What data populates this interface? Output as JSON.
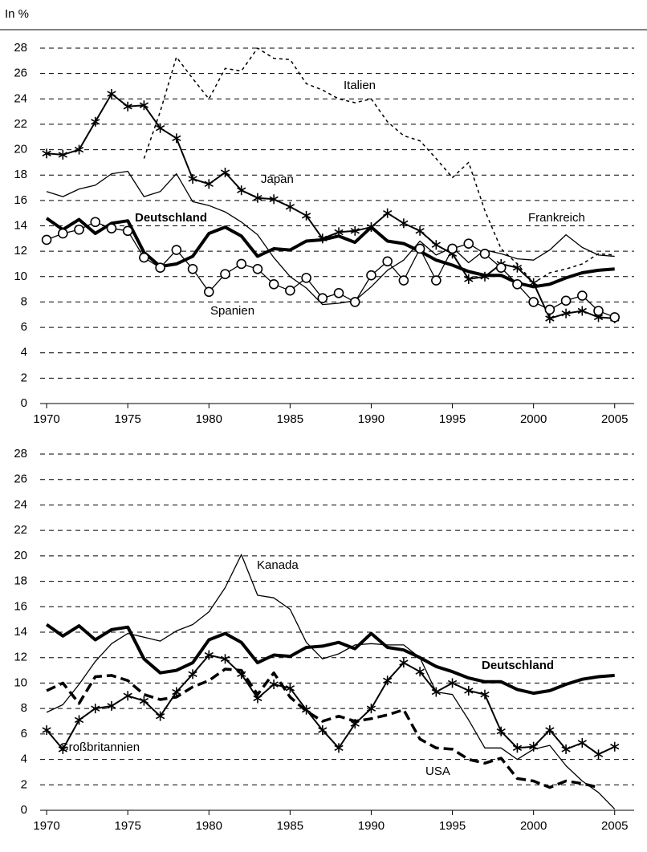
{
  "chart_data": [
    {
      "type": "line",
      "ylabel": "In %",
      "x": [
        1970,
        1971,
        1972,
        1973,
        1974,
        1975,
        1976,
        1977,
        1978,
        1979,
        1980,
        1981,
        1982,
        1983,
        1984,
        1985,
        1986,
        1987,
        1988,
        1989,
        1990,
        1991,
        1992,
        1993,
        1994,
        1995,
        1996,
        1997,
        1998,
        1999,
        2000,
        2001,
        2002,
        2003,
        2004,
        2005
      ],
      "xlim": [
        1969.6,
        2006.2
      ],
      "xticks": [
        1970,
        1975,
        1980,
        1985,
        1990,
        1995,
        2000,
        2005
      ],
      "ylim": [
        0,
        28
      ],
      "yticks": [
        0,
        2,
        4,
        6,
        8,
        10,
        12,
        14,
        16,
        18,
        20,
        22,
        24,
        26,
        28
      ],
      "grid": true,
      "series": [
        {
          "name": "Italien",
          "color": "#000000",
          "width": 1.5,
          "dash": "dotted",
          "marker": "none",
          "values": [
            null,
            null,
            null,
            null,
            null,
            null,
            19.3,
            23.0,
            27.3,
            25.6,
            24.0,
            26.4,
            26.2,
            28.0,
            27.2,
            27.1,
            25.2,
            24.7,
            24.0,
            23.7,
            24.0,
            22.2,
            21.1,
            20.7,
            19.3,
            17.8,
            19.0,
            15.2,
            12.2,
            11.0,
            9.5,
            10.3,
            10.6,
            11.0,
            11.8,
            11.7
          ]
        },
        {
          "name": "Japan",
          "color": "#000000",
          "width": 2,
          "dash": "solid",
          "marker": "asterisk",
          "values": [
            19.7,
            19.6,
            20.0,
            22.2,
            24.4,
            23.4,
            23.5,
            21.7,
            20.9,
            17.7,
            17.3,
            18.2,
            16.8,
            16.2,
            16.1,
            15.5,
            14.8,
            13.0,
            13.5,
            13.6,
            13.9,
            15.0,
            14.2,
            13.6,
            12.5,
            11.8,
            9.8,
            10.0,
            11.0,
            10.7,
            9.5,
            6.7,
            7.1,
            7.3,
            6.8,
            6.7
          ]
        },
        {
          "name": "Deutschland",
          "color": "#000000",
          "width": 4,
          "dash": "solid",
          "marker": "none",
          "values": [
            14.6,
            13.7,
            14.5,
            13.4,
            14.2,
            14.4,
            11.9,
            10.8,
            11.0,
            11.6,
            13.4,
            13.9,
            13.2,
            11.6,
            12.2,
            12.1,
            12.8,
            12.9,
            13.2,
            12.7,
            13.9,
            12.8,
            12.6,
            12.0,
            11.3,
            10.9,
            10.4,
            10.1,
            10.1,
            9.5,
            9.2,
            9.4,
            9.9,
            10.3,
            10.5,
            10.6
          ]
        },
        {
          "name": "Frankreich",
          "color": "#000000",
          "width": 1.3,
          "dash": "solid",
          "marker": "none",
          "values": [
            16.7,
            16.3,
            16.9,
            17.2,
            18.1,
            18.3,
            16.3,
            16.7,
            18.1,
            15.9,
            15.6,
            15.1,
            14.3,
            13.3,
            11.5,
            10.0,
            9.1,
            7.8,
            7.9,
            8.1,
            9.2,
            10.5,
            11.3,
            12.8,
            11.7,
            12.3,
            11.1,
            12.1,
            11.8,
            11.4,
            11.3,
            12.1,
            13.3,
            12.3,
            11.7,
            11.6
          ]
        },
        {
          "name": "Spanien",
          "color": "#000000",
          "width": 1.3,
          "dash": "solid",
          "marker": "circle",
          "values": [
            12.9,
            13.4,
            13.7,
            14.3,
            13.8,
            13.6,
            11.5,
            10.7,
            12.1,
            10.6,
            8.8,
            10.2,
            11.0,
            10.6,
            9.4,
            8.9,
            9.9,
            8.3,
            8.7,
            8.0,
            10.1,
            11.2,
            9.7,
            12.2,
            9.7,
            12.2,
            12.6,
            11.8,
            10.7,
            9.4,
            8.0,
            7.4,
            8.1,
            8.5,
            7.3,
            6.8
          ]
        }
      ]
    },
    {
      "type": "line",
      "x": [
        1970,
        1971,
        1972,
        1973,
        1974,
        1975,
        1976,
        1977,
        1978,
        1979,
        1980,
        1981,
        1982,
        1983,
        1984,
        1985,
        1986,
        1987,
        1988,
        1989,
        1990,
        1991,
        1992,
        1993,
        1994,
        1995,
        1996,
        1997,
        1998,
        1999,
        2000,
        2001,
        2002,
        2003,
        2004,
        2005
      ],
      "xlim": [
        1969.6,
        2006.2
      ],
      "xticks": [
        1970,
        1975,
        1980,
        1985,
        1990,
        1995,
        2000,
        2005
      ],
      "ylim": [
        0,
        28
      ],
      "yticks": [
        0,
        2,
        4,
        6,
        8,
        10,
        12,
        14,
        16,
        18,
        20,
        22,
        24,
        26,
        28
      ],
      "grid": true,
      "series": [
        {
          "name": "Kanada",
          "color": "#000000",
          "width": 1.3,
          "dash": "solid",
          "marker": "none",
          "values": [
            7.7,
            8.3,
            9.9,
            11.7,
            13.1,
            13.9,
            13.6,
            13.3,
            14.1,
            14.6,
            15.6,
            17.5,
            20.1,
            16.9,
            16.7,
            15.8,
            13.2,
            11.9,
            12.3,
            13.0,
            13.1,
            13.0,
            13.0,
            12.0,
            9.3,
            9.1,
            7.1,
            4.9,
            4.9,
            4.0,
            4.8,
            5.1,
            3.5,
            2.3,
            1.4,
            0.1
          ]
        },
        {
          "name": "Deutschland",
          "color": "#000000",
          "width": 4,
          "dash": "solid",
          "marker": "none",
          "values": [
            14.6,
            13.7,
            14.5,
            13.4,
            14.2,
            14.4,
            11.9,
            10.8,
            11.0,
            11.6,
            13.4,
            13.9,
            13.2,
            11.6,
            12.2,
            12.1,
            12.8,
            12.9,
            13.2,
            12.7,
            13.9,
            12.8,
            12.6,
            12.0,
            11.3,
            10.9,
            10.4,
            10.1,
            10.1,
            9.5,
            9.2,
            9.4,
            9.9,
            10.3,
            10.5,
            10.6
          ]
        },
        {
          "name": "Großbritannien",
          "color": "#000000",
          "width": 2,
          "dash": "solid",
          "marker": "asterisk",
          "values": [
            6.3,
            4.8,
            7.1,
            8.0,
            8.2,
            9.0,
            8.6,
            7.4,
            9.3,
            10.7,
            12.2,
            11.9,
            10.7,
            8.8,
            9.9,
            9.6,
            7.9,
            6.3,
            4.9,
            6.8,
            8.0,
            10.2,
            11.6,
            10.9,
            9.3,
            10.0,
            9.4,
            9.1,
            6.2,
            4.9,
            5.0,
            6.3,
            4.8,
            5.3,
            4.4,
            5.0
          ]
        },
        {
          "name": "USA",
          "color": "#000000",
          "width": 3.5,
          "dash": "dashed",
          "marker": "none",
          "values": [
            9.4,
            10.0,
            8.4,
            10.5,
            10.6,
            10.2,
            9.1,
            8.7,
            8.9,
            9.7,
            10.2,
            11.1,
            11.0,
            9.1,
            10.8,
            8.9,
            7.8,
            7.0,
            7.4,
            7.0,
            7.2,
            7.5,
            7.9,
            5.6,
            4.9,
            4.8,
            4.0,
            3.7,
            4.1,
            2.5,
            2.3,
            1.8,
            2.3,
            2.1,
            1.8,
            null
          ]
        }
      ]
    }
  ]
}
